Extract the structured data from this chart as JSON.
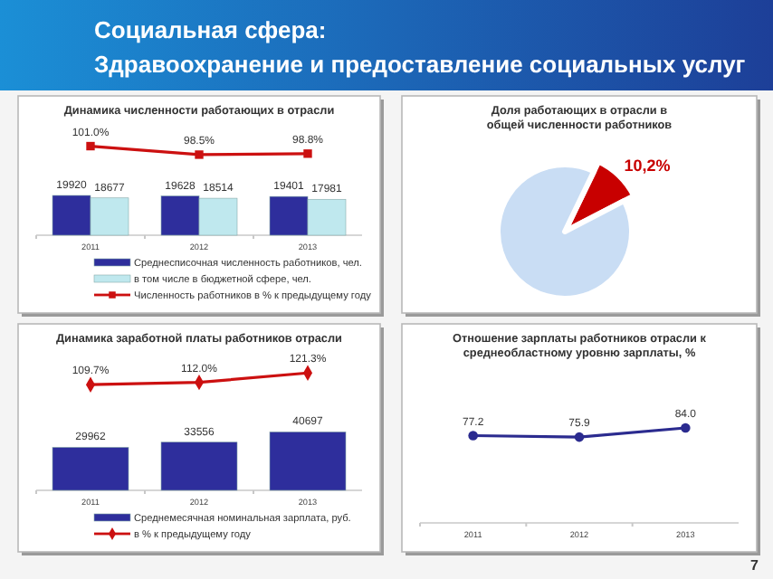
{
  "chart_data": [
    {
      "type": "other",
      "title": "Социальная сфера:",
      "subtitle": "Здравоохранение и предоставление социальных услуг",
      "annotations": [
        "7"
      ]
    },
    {
      "type": "bar",
      "categories": [
        "2011",
        "2012",
        "2013"
      ],
      "tick_labels": "x",
      "legend": "bottom",
      "series": [
        {
          "name": "Среднесписочная численность работников, чел.",
          "color": "#2e2e9c",
          "values": [
            19920,
            19628,
            19401
          ],
          "value_labels": [
            "19920",
            "19628",
            "19401"
          ]
        },
        {
          "name": "в том числе в бюджетной сфере, чел.",
          "color": "#bfe8ee",
          "values": [
            18677,
            18514,
            17981
          ],
          "value_labels": [
            "18677",
            "18514",
            "17981"
          ]
        }
      ]
    },
    {
      "type": "line",
      "title": "Динамика численности работающих в  отрасли",
      "categories": [
        null,
        null,
        null
      ],
      "tick_labels": false,
      "legend": "bottom",
      "marker": "square",
      "series": [
        {
          "name": "Численность работников в % к предыдущему году",
          "color": "#cc1010",
          "values": [
            101.0,
            98.5,
            98.8
          ],
          "value_labels": [
            "101.0%",
            "98.5%",
            "98.8%"
          ]
        }
      ]
    },
    {
      "type": "pie",
      "title": "Доля работающих в отрасли в общей численности работников",
      "categories": [
        null,
        null
      ],
      "values": [
        10.2,
        89.8
      ],
      "colors": [
        "#c80000",
        "#c9ddf4"
      ],
      "value_labels": [
        "10,2%",
        null
      ]
    },
    {
      "type": "bar",
      "categories": [
        "2011",
        "2012",
        "2013"
      ],
      "tick_labels": "x",
      "legend": "bottom",
      "series": [
        {
          "name": "Среднемесячная номинальная зарплата, руб.",
          "color": "#2e2e9c",
          "values": [
            29962,
            33556,
            40697
          ],
          "value_labels": [
            "29962",
            "33556",
            "40697"
          ]
        }
      ]
    },
    {
      "type": "line",
      "title": "Динамика заработной платы работников отрасли",
      "categories": [
        null,
        null,
        null
      ],
      "tick_labels": false,
      "legend": "bottom",
      "marker": "diamond",
      "series": [
        {
          "name": "в % к предыдущему году",
          "color": "#cc1010",
          "values": [
            109.7,
            112.0,
            121.3
          ],
          "value_labels": [
            "109.7%",
            "112.0%",
            "121.3%"
          ]
        }
      ]
    },
    {
      "type": "line",
      "title": "Отношение зарплаты работников отрасли к среднеобластному уровню зарплаты, %",
      "categories": [
        "2011",
        "2012",
        "2013"
      ],
      "tick_labels": "x",
      "marker": "circle",
      "series": [
        {
          "color": "#2b2b8f",
          "values": [
            77.2,
            75.9,
            84.0
          ],
          "value_labels": [
            "77.2",
            "75.9",
            "84.0"
          ]
        }
      ]
    }
  ]
}
